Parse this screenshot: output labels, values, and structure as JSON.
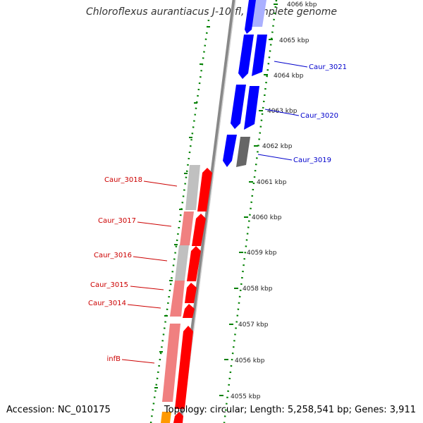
{
  "title": "Chloroflexus aurantiacus J-10-fl, complete genome",
  "footer": {
    "accession": "Accession: NC_010175",
    "topology": "Topology: circular; Length: 5,258,541 bp; Genes: 3,911"
  },
  "colors": {
    "blue_gene": "#0000ff",
    "red_gene": "#ff0000",
    "gray_gene": "#777777",
    "light_gray": "#c0c0c0",
    "pink": "#f08080",
    "orange": "#ff9900",
    "tick_green": "#008000",
    "blue_label": "#0000cc",
    "red_label": "#cc0000"
  },
  "kbp_ticks": [
    {
      "label": "4066 kbp"
    },
    {
      "label": "4065 kbp"
    },
    {
      "label": "4064 kbp"
    },
    {
      "label": "4063 kbp"
    },
    {
      "label": "4062 kbp"
    },
    {
      "label": "4061 kbp"
    },
    {
      "label": "4060 kbp"
    },
    {
      "label": "4059 kbp"
    },
    {
      "label": "4058 kbp"
    },
    {
      "label": "4057 kbp"
    },
    {
      "label": "4056 kbp"
    },
    {
      "label": "4055 kbp"
    }
  ],
  "gene_labels": {
    "caur_3021": "Caur_3021",
    "caur_3020": "Caur_3020",
    "caur_3019": "Caur_3019",
    "caur_3018": "Caur_3018",
    "caur_3017": "Caur_3017",
    "caur_3016": "Caur_3016",
    "caur_3015": "Caur_3015",
    "caur_3014": "Caur_3014",
    "infb": "infB"
  }
}
